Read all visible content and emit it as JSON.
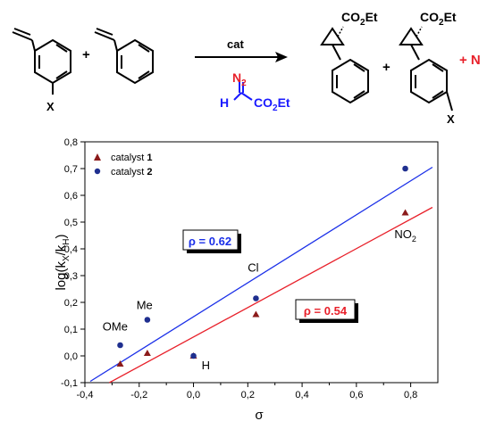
{
  "scheme": {
    "plus": "+",
    "arrow_label": "cat",
    "x_label": "X",
    "n2_label": "N",
    "n2_sub": "2",
    "h_label": "H",
    "co2et_top": "CO",
    "co2et_sub": "2",
    "co2et_end": "Et",
    "product_1_ester": "CO",
    "product_1_ester_sub": "2",
    "product_1_ester_end": "Et",
    "product_2_ester": "CO",
    "product_2_ester_sub": "2",
    "product_2_ester_end": "Et",
    "product_x_label": "X",
    "trailing": "+ N",
    "colors": {
      "diazo": "#1a1aff",
      "n2_red": "#e8202a",
      "black": "#000000"
    }
  },
  "chart_data": {
    "type": "scatter",
    "xlabel": "σ",
    "ylabel_main": "log(k",
    "ylabel_sub1": "X",
    "ylabel_mid": "/k",
    "ylabel_sub2": "H",
    "ylabel_end": ")",
    "xlim": [
      -0.4,
      0.9
    ],
    "ylim": [
      -0.1,
      0.8
    ],
    "x_ticks": [
      -0.4,
      -0.2,
      0.0,
      0.2,
      0.4,
      0.6,
      0.8
    ],
    "x_tick_labels": [
      "-0,4",
      "-0,2",
      "0,0",
      "0,2",
      "0,4",
      "0,6",
      "0,8"
    ],
    "y_ticks": [
      -0.1,
      0.0,
      0.1,
      0.2,
      0.3,
      0.4,
      0.5,
      0.6,
      0.7,
      0.8
    ],
    "y_tick_labels": [
      "-0,1",
      "0,0",
      "0,1",
      "0,2",
      "0,3",
      "0,4",
      "0,5",
      "0,6",
      "0,7",
      "0,8"
    ],
    "legend": [
      {
        "label": "catalyst ",
        "bold": "1",
        "marker": "triangle",
        "color": "#8b1a1a"
      },
      {
        "label": "catalyst ",
        "bold": "2",
        "marker": "circle",
        "color": "#1f2f8f"
      }
    ],
    "series": [
      {
        "marker": "triangle",
        "color": "#8b1a1a",
        "x": [
          -0.27,
          -0.17,
          0.0,
          0.23,
          0.78
        ],
        "y": [
          -0.03,
          0.01,
          0.0,
          0.155,
          0.535
        ]
      },
      {
        "marker": "circle",
        "color": "#1f2f8f",
        "x": [
          -0.27,
          -0.17,
          0.0,
          0.23,
          0.78
        ],
        "y": [
          0.04,
          0.135,
          0.0,
          0.215,
          0.7
        ]
      }
    ],
    "fits": [
      {
        "color": "#e8202a",
        "x": [
          -0.31,
          0.88
        ],
        "y": [
          -0.1,
          0.555
        ]
      },
      {
        "color": "#1a2fe8",
        "x": [
          -0.38,
          0.88
        ],
        "y": [
          -0.095,
          0.705
        ]
      }
    ],
    "annotations": [
      {
        "text": "OMe",
        "x": -0.335,
        "y": 0.095
      },
      {
        "text": "Me",
        "x": -0.21,
        "y": 0.175
      },
      {
        "text": "H",
        "x": 0.03,
        "y": -0.05
      },
      {
        "text": "Cl",
        "x": 0.2,
        "y": 0.315
      },
      {
        "text": "NO",
        "sub": "2",
        "x": 0.74,
        "y": 0.44
      }
    ],
    "rho_boxes": [
      {
        "text": "ρ = 0.62",
        "color": "#1a2fe8"
      },
      {
        "text": "ρ = 0.54",
        "color": "#e8202a"
      }
    ]
  }
}
